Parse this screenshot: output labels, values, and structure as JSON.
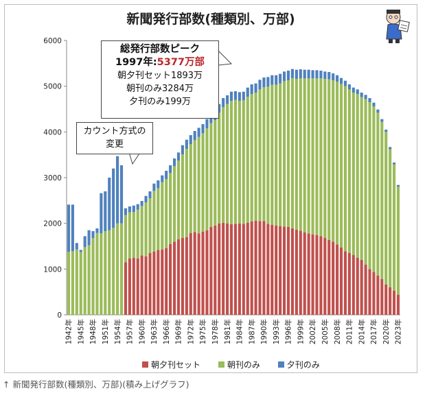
{
  "chart_data": {
    "type": "bar",
    "stacked": true,
    "title": "新聞発行部数(種類別、万部)",
    "ylim": [
      0,
      6000
    ],
    "yticks": [
      0,
      1000,
      2000,
      3000,
      4000,
      5000,
      6000
    ],
    "years": [
      1942,
      1943,
      1944,
      1945,
      1946,
      1947,
      1948,
      1949,
      1950,
      1951,
      1952,
      1953,
      1954,
      1955,
      1956,
      1957,
      1958,
      1959,
      1960,
      1961,
      1962,
      1963,
      1964,
      1965,
      1966,
      1967,
      1968,
      1969,
      1970,
      1971,
      1972,
      1973,
      1974,
      1975,
      1976,
      1977,
      1978,
      1979,
      1980,
      1981,
      1982,
      1983,
      1984,
      1985,
      1986,
      1987,
      1988,
      1989,
      1990,
      1991,
      1992,
      1993,
      1994,
      1995,
      1996,
      1997,
      1998,
      1999,
      2000,
      2001,
      2002,
      2003,
      2004,
      2005,
      2006,
      2007,
      2008,
      2009,
      2010,
      2011,
      2012,
      2013,
      2014,
      2015,
      2016,
      2017,
      2018,
      2019,
      2020,
      2021,
      2022,
      2023
    ],
    "x_tick_labels": [
      "1942年",
      "1945年",
      "1948年",
      "1951年",
      "1954年",
      "1957年",
      "1960年",
      "1963年",
      "1966年",
      "1969年",
      "1972年",
      "1975年",
      "1978年",
      "1981年",
      "1984年",
      "1987年",
      "1990年",
      "1993年",
      "1996年",
      "1999年",
      "2002年",
      "2005年",
      "2008年",
      "2011年",
      "2014年",
      "2017年",
      "2020年",
      "2023年"
    ],
    "series": [
      {
        "name": "朝夕刊セット",
        "color": "#c0504d",
        "values": [
          0,
          0,
          0,
          0,
          0,
          0,
          0,
          0,
          0,
          0,
          0,
          0,
          0,
          0,
          1150,
          1230,
          1250,
          1230,
          1300,
          1280,
          1350,
          1380,
          1420,
          1430,
          1460,
          1550,
          1600,
          1650,
          1680,
          1700,
          1790,
          1810,
          1780,
          1820,
          1850,
          1920,
          1950,
          2000,
          2010,
          2000,
          1980,
          1990,
          2000,
          1990,
          2010,
          2040,
          2060,
          2050,
          2050,
          1990,
          1970,
          1950,
          1940,
          1930,
          1920,
          1893,
          1860,
          1840,
          1800,
          1780,
          1760,
          1740,
          1720,
          1680,
          1640,
          1600,
          1540,
          1470,
          1390,
          1350,
          1310,
          1250,
          1200,
          1100,
          1000,
          940,
          860,
          780,
          660,
          600,
          530,
          440
        ]
      },
      {
        "name": "朝刊のみ",
        "color": "#9bbb59",
        "values": [
          1380,
          1390,
          1430,
          1370,
          1480,
          1520,
          1680,
          1790,
          1780,
          1830,
          1850,
          1900,
          2000,
          2000,
          1030,
          1010,
          1000,
          1070,
          1080,
          1180,
          1200,
          1330,
          1350,
          1470,
          1510,
          1550,
          1650,
          1720,
          1830,
          1930,
          1940,
          2010,
          2110,
          2150,
          2230,
          2270,
          2310,
          2420,
          2530,
          2610,
          2700,
          2710,
          2680,
          2700,
          2760,
          2790,
          2800,
          2880,
          2930,
          3000,
          3060,
          3080,
          3120,
          3180,
          3210,
          3284,
          3300,
          3330,
          3370,
          3390,
          3410,
          3430,
          3450,
          3480,
          3510,
          3530,
          3560,
          3580,
          3610,
          3580,
          3550,
          3580,
          3560,
          3620,
          3650,
          3620,
          3560,
          3440,
          3340,
          3020,
          2760,
          2360
        ]
      },
      {
        "name": "夕刊のみ",
        "color": "#4f81bd",
        "values": [
          1030,
          1020,
          140,
          50,
          240,
          330,
          150,
          100,
          880,
          870,
          1150,
          1300,
          1470,
          1270,
          150,
          130,
          140,
          120,
          110,
          140,
          150,
          160,
          170,
          150,
          180,
          170,
          170,
          180,
          200,
          200,
          200,
          200,
          200,
          200,
          200,
          220,
          220,
          190,
          200,
          190,
          200,
          190,
          190,
          190,
          200,
          210,
          200,
          210,
          210,
          210,
          210,
          210,
          210,
          210,
          210,
          199,
          200,
          200,
          190,
          190,
          180,
          180,
          170,
          160,
          160,
          150,
          140,
          130,
          120,
          110,
          110,
          100,
          100,
          90,
          90,
          80,
          70,
          60,
          50,
          50,
          40,
          40
        ]
      }
    ],
    "legend_position": "bottom"
  },
  "callout_peak": {
    "line1": "総発行部数ピーク",
    "line2_year": "1997年:",
    "line2_value": "5377万部",
    "line3": "朝夕刊セット1893万",
    "line4": "朝刊のみ3284万",
    "line5": "夕刊のみ199万"
  },
  "callout_method": {
    "line1": "カウント方式の",
    "line2": "変更"
  },
  "caption": "↑ 新聞発行部数(種類別、万部)(積み上げグラフ)"
}
